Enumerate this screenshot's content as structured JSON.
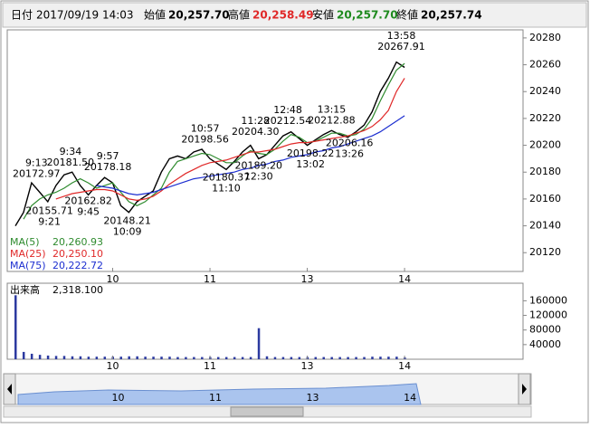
{
  "header": {
    "date_label": "日付",
    "datetime": "2017/09/19 14:03",
    "open_label": "始値",
    "open": "20,257.70",
    "high_label": "高値",
    "high": "20,258.49",
    "low_label": "安値",
    "low": "20,257.70",
    "close_label": "終値",
    "close": "20,257.74"
  },
  "chart_data": [
    {
      "type": "line",
      "categories": [
        null,
        null,
        null,
        null,
        null,
        null,
        null,
        null,
        null,
        null,
        null,
        null,
        "10",
        null,
        null,
        null,
        null,
        null,
        null,
        null,
        null,
        null,
        null,
        null,
        "11",
        null,
        null,
        null,
        null,
        null,
        null,
        null,
        null,
        null,
        null,
        null,
        "13",
        null,
        null,
        null,
        null,
        null,
        null,
        null,
        null,
        null,
        null,
        null,
        "14"
      ],
      "ylim": [
        20106,
        20286
      ],
      "yticks": [
        20120,
        20140,
        20160,
        20180,
        20200,
        20220,
        20240,
        20260,
        20280
      ],
      "series": [
        {
          "color": "#000000",
          "values": [
            20140,
            20150,
            20172,
            20165,
            20158,
            20170,
            20178,
            20180,
            20170,
            20163,
            20170,
            20176,
            20172,
            20155,
            20150,
            20158,
            20162,
            20166,
            20180,
            20190,
            20192,
            20190,
            20195,
            20197,
            20190,
            20186,
            20182,
            20188,
            20195,
            20200,
            20190,
            20193,
            20200,
            20207,
            20210,
            20205,
            20200,
            20204,
            20208,
            20211,
            20208,
            20206,
            20210,
            20215,
            20225,
            20240,
            20250,
            20262,
            20258
          ]
        },
        {
          "name": "MA(5)",
          "legend_value": "20,260.93",
          "color": "#2e8b2e",
          "values": [
            null,
            20145,
            20155,
            20160,
            20163,
            20165,
            20168,
            20172,
            20175,
            20172,
            20168,
            20170,
            20172,
            20165,
            20158,
            20155,
            20158,
            20163,
            20168,
            20180,
            20188,
            20190,
            20192,
            20194,
            20193,
            20190,
            20187,
            20187,
            20192,
            20196,
            20194,
            20193,
            20197,
            20203,
            20208,
            20206,
            20202,
            20203,
            20206,
            20209,
            20209,
            20207,
            20208,
            20212,
            20220,
            20233,
            20245,
            20256,
            20261
          ]
        },
        {
          "name": "MA(25)",
          "legend_value": "20,250.10",
          "color": "#e02828",
          "values": [
            null,
            null,
            null,
            null,
            null,
            20160,
            20162,
            20164,
            20165,
            20166,
            20167,
            20167,
            20166,
            20163,
            20160,
            20159,
            20160,
            20162,
            20166,
            20171,
            20175,
            20179,
            20182,
            20185,
            20187,
            20188,
            20189,
            20191,
            20193,
            20195,
            20195,
            20196,
            20197,
            20199,
            20201,
            20202,
            20202,
            20203,
            20204,
            20205,
            20206,
            20207,
            20209,
            20211,
            20214,
            20219,
            20226,
            20240,
            20250
          ]
        },
        {
          "name": "MA(75)",
          "legend_value": "20,222.72",
          "color": "#1c2ed0",
          "values": [
            null,
            null,
            null,
            null,
            null,
            null,
            null,
            null,
            null,
            null,
            20170,
            20169,
            20168,
            20166,
            20164,
            20163,
            20164,
            20165,
            20167,
            20169,
            20171,
            20173,
            20175,
            20176,
            20177,
            20178,
            20179,
            20180,
            20182,
            20183,
            20185,
            20186,
            20188,
            20189,
            20191,
            20192,
            20193,
            20195,
            20196,
            20198,
            20199,
            20201,
            20203,
            20205,
            20207,
            20210,
            20214,
            20218,
            20222
          ]
        }
      ],
      "annotations": [
        {
          "time": "9:13",
          "value": 20172.97,
          "label": "20172.97",
          "side": "above"
        },
        {
          "time": "9:21",
          "value": 20155.71,
          "label": "20155.71",
          "side": "below"
        },
        {
          "time": "9:34",
          "value": 20181.5,
          "label": "20181.50",
          "side": "above"
        },
        {
          "time": "9:45",
          "value": 20162.82,
          "label": "20162.82",
          "side": "below"
        },
        {
          "time": "9:57",
          "value": 20178.18,
          "label": "20178.18",
          "side": "above"
        },
        {
          "time": "10:09",
          "value": 20148.21,
          "label": "20148.21",
          "side": "below"
        },
        {
          "time": "10:57",
          "value": 20198.56,
          "label": "20198.56",
          "side": "above"
        },
        {
          "time": "11:10",
          "value": 20180.37,
          "label": "20180.37",
          "side": "below"
        },
        {
          "time": "11:28",
          "value": 20204.3,
          "label": "20204.30",
          "side": "above"
        },
        {
          "time": "12:30",
          "value": 20189.2,
          "label": "20189.20",
          "side": "below"
        },
        {
          "time": "12:48",
          "value": 20212.54,
          "label": "20212.54",
          "side": "above"
        },
        {
          "time": "13:02",
          "value": 20198.22,
          "label": "20198.22",
          "side": "below"
        },
        {
          "time": "13:15",
          "value": 20212.88,
          "label": "20212.88",
          "side": "above"
        },
        {
          "time": "13:26",
          "value": 20206.16,
          "label": "20206.16",
          "side": "below"
        },
        {
          "time": "13:58",
          "value": 20267.91,
          "label": "20267.91",
          "side": "above"
        }
      ]
    },
    {
      "type": "bar",
      "title": "出来高",
      "last_label": "2,318.100",
      "color": "#2c3aa0",
      "ylim": [
        0,
        208000
      ],
      "yticks": [
        40000,
        80000,
        120000,
        160000
      ],
      "values": [
        175000,
        20000,
        15000,
        12000,
        10000,
        9000,
        9000,
        8000,
        8000,
        7000,
        7000,
        7000,
        7000,
        7000,
        8000,
        8000,
        7000,
        7000,
        7000,
        7000,
        6000,
        6000,
        6000,
        6000,
        6000,
        6000,
        6000,
        6000,
        6000,
        6000,
        85000,
        8000,
        6000,
        6000,
        6000,
        6000,
        6000,
        6000,
        6000,
        6000,
        6000,
        6000,
        6000,
        6000,
        7000,
        7000,
        7000,
        7000,
        5000
      ]
    }
  ]
}
